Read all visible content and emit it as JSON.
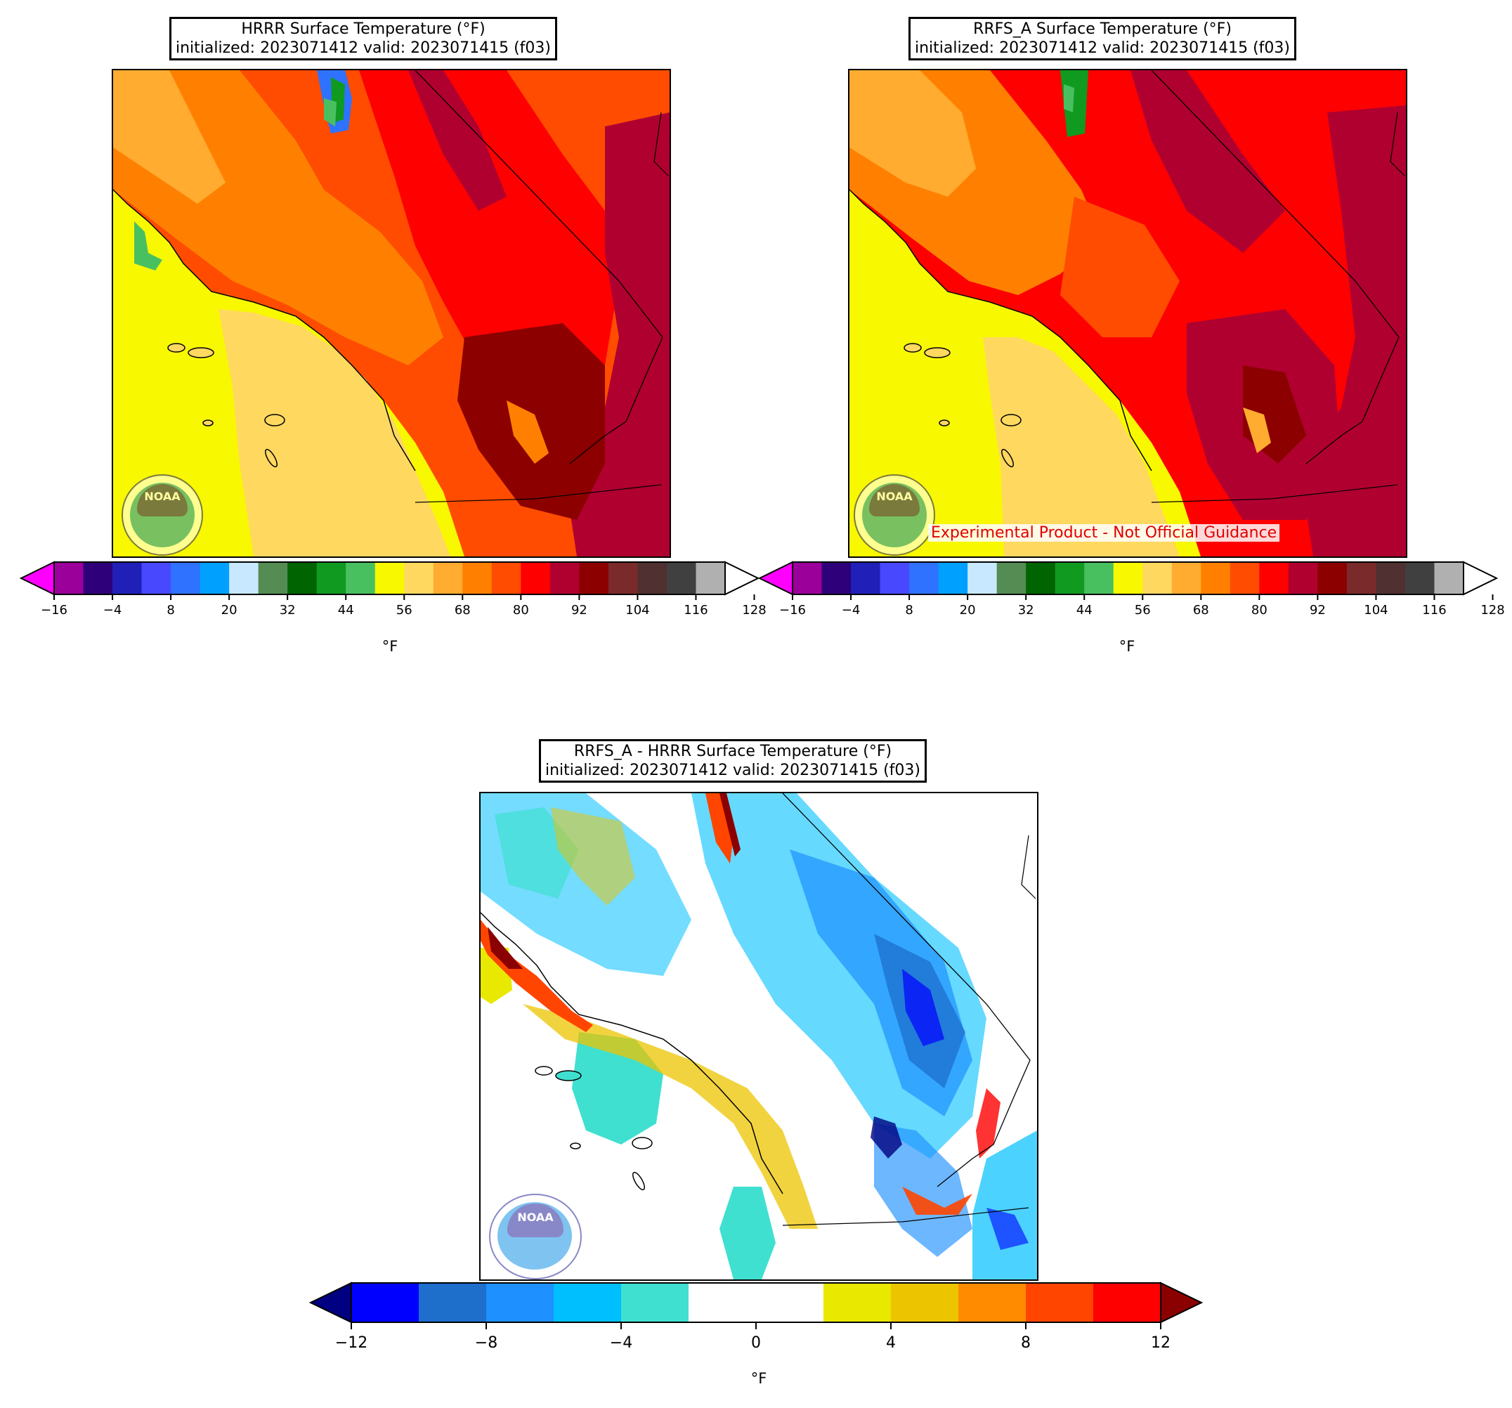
{
  "panels": {
    "hrrr": {
      "title_line1": "HRRR Surface Temperature (°F)",
      "title_line2": "initialized: 2023071412 valid: 2023071415 (f03)",
      "logo_text": "NOAA",
      "colorbar": {
        "ticks": [
          "−16",
          "−4",
          "8",
          "20",
          "32",
          "44",
          "56",
          "68",
          "80",
          "92",
          "104",
          "116",
          "128"
        ],
        "unit": "°F"
      }
    },
    "rrfs": {
      "title_line1": "RRFS_A Surface Temperature (°F)",
      "title_line2": "initialized: 2023071412 valid: 2023071415 (f03)",
      "logo_text": "NOAA",
      "experimental_label": "Experimental Product - Not Official Guidance",
      "colorbar": {
        "ticks": [
          "−16",
          "−4",
          "8",
          "20",
          "32",
          "44",
          "56",
          "68",
          "80",
          "92",
          "104",
          "116",
          "128"
        ],
        "unit": "°F"
      }
    },
    "diff": {
      "title_line1": "RRFS_A - HRRR Surface Temperature (°F)",
      "title_line2": "initialized: 2023071412 valid: 2023071415 (f03)",
      "logo_text": "NOAA",
      "colorbar": {
        "ticks": [
          "−12",
          "−8",
          "−4",
          "0",
          "4",
          "8",
          "12"
        ],
        "unit": "°F"
      }
    }
  },
  "colors": {
    "temp_scale": [
      "#ff00ff",
      "#9b009b",
      "#2e007a",
      "#2020b8",
      "#4848ff",
      "#2e72ff",
      "#00a0ff",
      "#c8e8ff",
      "#548c54",
      "#006400",
      "#109a20",
      "#48c060",
      "#f8f800",
      "#ffd860",
      "#ffac30",
      "#ff8000",
      "#ff4c00",
      "#ff0000",
      "#b00030",
      "#8c0000",
      "#7a2a2a",
      "#503030",
      "#404040",
      "#b0b0b0",
      "#ffffff"
    ],
    "diff_scale": [
      "#000080",
      "#0000ff",
      "#1e6ecc",
      "#1e90ff",
      "#00bfff",
      "#40e0d0",
      "#ffffff",
      "#ffffff",
      "#e8e800",
      "#ecc400",
      "#ff8c00",
      "#ff4500",
      "#ff0000",
      "#8b0000"
    ],
    "noaa_logo_temp": "#7a7a3c",
    "noaa_logo_diff": "#8888c8",
    "experimental_text": "#e00000"
  }
}
